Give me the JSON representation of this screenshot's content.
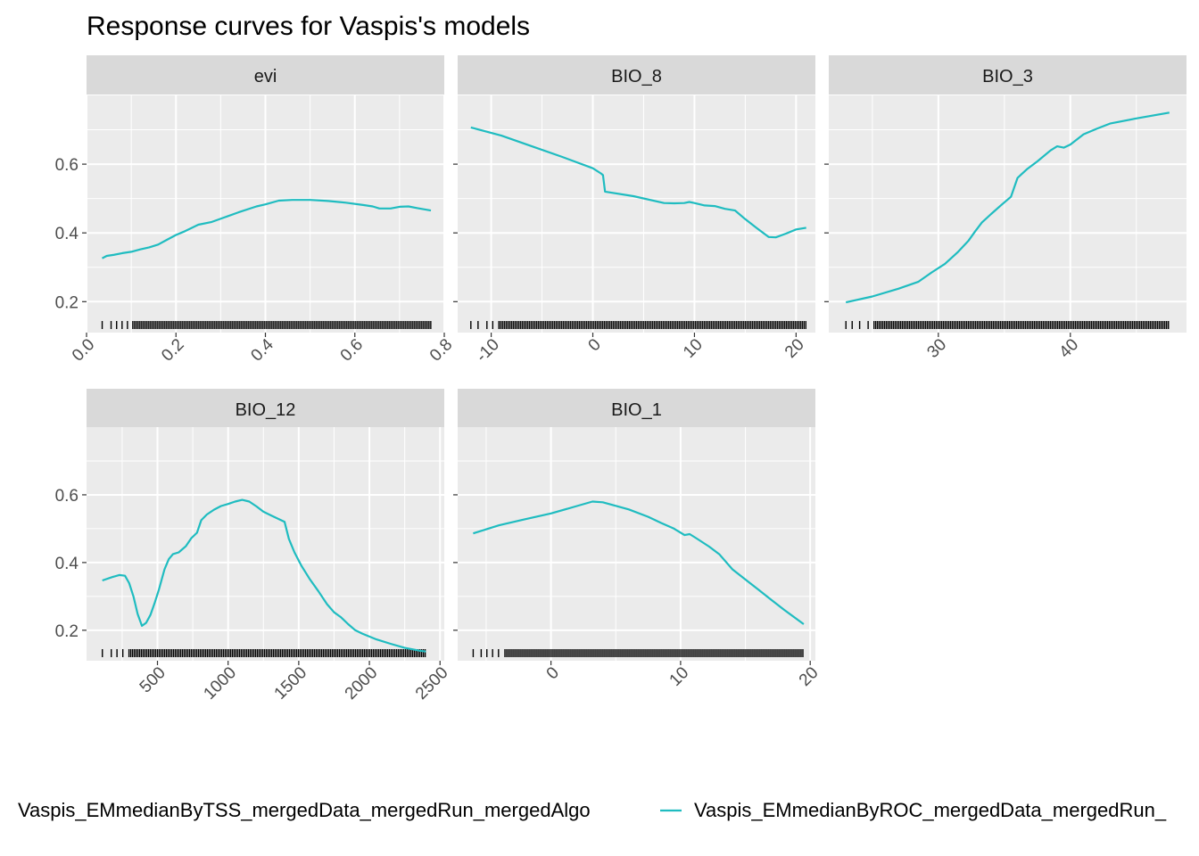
{
  "chart": {
    "title": "Response curves for Vaspis's models",
    "legend_position": "bottom",
    "legend": [
      {
        "label": "Vaspis_EMmedianByTSS_mergedData_mergedRun_mergedAlgo",
        "color": "#f8766d",
        "swatch_visible": false
      },
      {
        "label": "Vaspis_EMmedianByROC_mergedData_mergedRun_",
        "color": "#1fbcc0",
        "swatch_visible": true
      }
    ],
    "y_ticks": [
      "0.2",
      "0.4",
      "0.6"
    ]
  },
  "chart_data": {
    "type": "line",
    "grid": true,
    "panel_background": "#ebebeb",
    "strip_background": "#d9d9d9",
    "line_color": "#1fbcc0",
    "ylim": [
      0.11,
      0.8
    ],
    "y_tick_values": [
      0.2,
      0.4,
      0.6
    ],
    "panels": [
      {
        "label": "evi",
        "xlim": [
          0.0,
          0.8
        ],
        "x_ticks": [
          0.0,
          0.2,
          0.4,
          0.6,
          0.8
        ],
        "x_tick_labels": [
          "0.0",
          "0.2",
          "0.4",
          "0.6",
          "0.8"
        ],
        "x_minor": [
          0.1,
          0.3,
          0.5,
          0.7
        ],
        "rug_range": [
          0.035,
          0.77
        ],
        "points": [
          [
            0.035,
            0.326
          ],
          [
            0.045,
            0.333
          ],
          [
            0.06,
            0.336
          ],
          [
            0.08,
            0.341
          ],
          [
            0.1,
            0.345
          ],
          [
            0.12,
            0.352
          ],
          [
            0.14,
            0.358
          ],
          [
            0.16,
            0.366
          ],
          [
            0.18,
            0.38
          ],
          [
            0.2,
            0.394
          ],
          [
            0.22,
            0.405
          ],
          [
            0.25,
            0.424
          ],
          [
            0.28,
            0.432
          ],
          [
            0.31,
            0.446
          ],
          [
            0.34,
            0.46
          ],
          [
            0.38,
            0.477
          ],
          [
            0.4,
            0.483
          ],
          [
            0.43,
            0.494
          ],
          [
            0.46,
            0.496
          ],
          [
            0.5,
            0.496
          ],
          [
            0.54,
            0.493
          ],
          [
            0.58,
            0.488
          ],
          [
            0.62,
            0.481
          ],
          [
            0.64,
            0.477
          ],
          [
            0.655,
            0.471
          ],
          [
            0.68,
            0.471
          ],
          [
            0.7,
            0.476
          ],
          [
            0.72,
            0.477
          ],
          [
            0.74,
            0.472
          ],
          [
            0.77,
            0.465
          ]
        ]
      },
      {
        "label": "BIO_8",
        "xlim": [
          -13.3,
          21.9
        ],
        "x_ticks": [
          -10,
          0,
          10,
          20
        ],
        "x_tick_labels": [
          "-10",
          "0",
          "10",
          "20"
        ],
        "x_minor": [
          -5,
          5,
          15
        ],
        "rug_range": [
          -12,
          21
        ],
        "points": [
          [
            -12,
            0.707
          ],
          [
            -9,
            0.683
          ],
          [
            -6,
            0.652
          ],
          [
            -3,
            0.621
          ],
          [
            0,
            0.588
          ],
          [
            0.8,
            0.573
          ],
          [
            1,
            0.568
          ],
          [
            1.2,
            0.52
          ],
          [
            4,
            0.507
          ],
          [
            7,
            0.487
          ],
          [
            8,
            0.486
          ],
          [
            9,
            0.487
          ],
          [
            9.5,
            0.49
          ],
          [
            10,
            0.487
          ],
          [
            11,
            0.48
          ],
          [
            12,
            0.478
          ],
          [
            13,
            0.47
          ],
          [
            14,
            0.465
          ],
          [
            15,
            0.44
          ],
          [
            16.3,
            0.41
          ],
          [
            17.3,
            0.388
          ],
          [
            18,
            0.387
          ],
          [
            19,
            0.398
          ],
          [
            20,
            0.41
          ],
          [
            21,
            0.415
          ]
        ]
      },
      {
        "label": "BIO_3",
        "xlim": [
          21.7,
          48.8
        ],
        "x_ticks": [
          30,
          40
        ],
        "x_tick_labels": [
          "30",
          "40"
        ],
        "x_minor": [
          25,
          35,
          45
        ],
        "rug_range": [
          23,
          47.5
        ],
        "points": [
          [
            23,
            0.198
          ],
          [
            25,
            0.215
          ],
          [
            27,
            0.238
          ],
          [
            28.5,
            0.258
          ],
          [
            29.5,
            0.285
          ],
          [
            30.5,
            0.31
          ],
          [
            31.5,
            0.345
          ],
          [
            32.3,
            0.378
          ],
          [
            32.8,
            0.405
          ],
          [
            33.3,
            0.43
          ],
          [
            34,
            0.455
          ],
          [
            34.8,
            0.482
          ],
          [
            35.5,
            0.505
          ],
          [
            36,
            0.56
          ],
          [
            36.7,
            0.585
          ],
          [
            37.5,
            0.608
          ],
          [
            38.5,
            0.64
          ],
          [
            39,
            0.652
          ],
          [
            39.5,
            0.648
          ],
          [
            40,
            0.657
          ],
          [
            41,
            0.687
          ],
          [
            42,
            0.703
          ],
          [
            43,
            0.718
          ],
          [
            45,
            0.733
          ],
          [
            47.5,
            0.75
          ]
        ]
      },
      {
        "label": "BIO_12",
        "xlim": [
          -2,
          2530
        ],
        "x_ticks": [
          500,
          1000,
          1500,
          2000,
          2500
        ],
        "x_tick_labels": [
          "500",
          "1000",
          "1500",
          "2000",
          "2500"
        ],
        "x_minor": [
          250,
          750,
          1250,
          1750,
          2250
        ],
        "rug_range": [
          110,
          2400
        ],
        "points": [
          [
            110,
            0.347
          ],
          [
            180,
            0.357
          ],
          [
            230,
            0.363
          ],
          [
            270,
            0.361
          ],
          [
            300,
            0.339
          ],
          [
            330,
            0.3
          ],
          [
            360,
            0.248
          ],
          [
            390,
            0.213
          ],
          [
            420,
            0.222
          ],
          [
            450,
            0.245
          ],
          [
            480,
            0.28
          ],
          [
            510,
            0.32
          ],
          [
            550,
            0.38
          ],
          [
            580,
            0.41
          ],
          [
            610,
            0.425
          ],
          [
            650,
            0.43
          ],
          [
            700,
            0.448
          ],
          [
            740,
            0.472
          ],
          [
            780,
            0.488
          ],
          [
            810,
            0.525
          ],
          [
            850,
            0.542
          ],
          [
            900,
            0.556
          ],
          [
            950,
            0.567
          ],
          [
            1000,
            0.573
          ],
          [
            1050,
            0.58
          ],
          [
            1100,
            0.585
          ],
          [
            1150,
            0.58
          ],
          [
            1200,
            0.566
          ],
          [
            1250,
            0.55
          ],
          [
            1300,
            0.54
          ],
          [
            1350,
            0.53
          ],
          [
            1400,
            0.52
          ],
          [
            1430,
            0.47
          ],
          [
            1470,
            0.43
          ],
          [
            1520,
            0.39
          ],
          [
            1580,
            0.35
          ],
          [
            1640,
            0.315
          ],
          [
            1700,
            0.277
          ],
          [
            1750,
            0.253
          ],
          [
            1800,
            0.238
          ],
          [
            1850,
            0.218
          ],
          [
            1900,
            0.2
          ],
          [
            1950,
            0.19
          ],
          [
            2050,
            0.173
          ],
          [
            2150,
            0.16
          ],
          [
            2250,
            0.148
          ],
          [
            2350,
            0.14
          ],
          [
            2400,
            0.137
          ]
        ]
      },
      {
        "label": "BIO_1",
        "xlim": [
          -7.2,
          20.4
        ],
        "x_ticks": [
          0,
          10,
          20
        ],
        "x_tick_labels": [
          "0",
          "10",
          "20"
        ],
        "x_minor": [
          -5,
          5,
          15
        ],
        "rug_range": [
          -6,
          19.5
        ],
        "points": [
          [
            -6,
            0.486
          ],
          [
            -4,
            0.51
          ],
          [
            -2,
            0.528
          ],
          [
            0,
            0.545
          ],
          [
            2,
            0.567
          ],
          [
            3.2,
            0.58
          ],
          [
            4,
            0.578
          ],
          [
            6,
            0.557
          ],
          [
            7.5,
            0.535
          ],
          [
            8.5,
            0.517
          ],
          [
            9.5,
            0.5
          ],
          [
            10.3,
            0.481
          ],
          [
            10.7,
            0.484
          ],
          [
            11.2,
            0.472
          ],
          [
            12.2,
            0.447
          ],
          [
            13,
            0.424
          ],
          [
            14,
            0.38
          ],
          [
            15,
            0.35
          ],
          [
            16,
            0.32
          ],
          [
            17,
            0.29
          ],
          [
            18,
            0.26
          ],
          [
            19.5,
            0.218
          ]
        ]
      }
    ]
  }
}
